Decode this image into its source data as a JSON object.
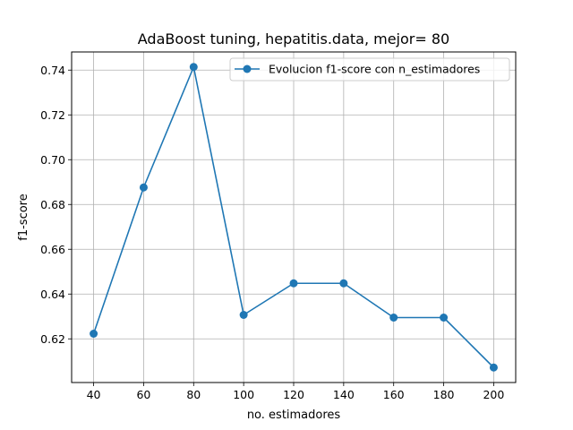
{
  "chart_data": {
    "type": "line",
    "title": "AdaBoost tuning, hepatitis.data, mejor= 80",
    "xlabel": "no. estimadores",
    "ylabel": "f1-score",
    "x": [
      40,
      60,
      80,
      100,
      120,
      140,
      160,
      180,
      200
    ],
    "series": [
      {
        "name": "Evolucion f1-score con n_estimadores",
        "values": [
          0.6223,
          0.6876,
          0.7414,
          0.6307,
          0.6448,
          0.6448,
          0.6295,
          0.6295,
          0.6072
        ],
        "color": "#1f77b4",
        "marker": "circle"
      }
    ],
    "xticks": [
      40,
      60,
      80,
      100,
      120,
      140,
      160,
      180,
      200
    ],
    "xtick_labels": [
      "40",
      "60",
      "80",
      "100",
      "120",
      "140",
      "160",
      "180",
      "200"
    ],
    "yticks": [
      0.62,
      0.64,
      0.66,
      0.68,
      0.7,
      0.72,
      0.74
    ],
    "ytick_labels": [
      "0.62",
      "0.64",
      "0.66",
      "0.68",
      "0.70",
      "0.72",
      "0.74"
    ],
    "xlim": [
      31.2,
      208.8
    ],
    "ylim": [
      0.6005,
      0.7481
    ],
    "grid": true,
    "legend_position": "top-right"
  }
}
